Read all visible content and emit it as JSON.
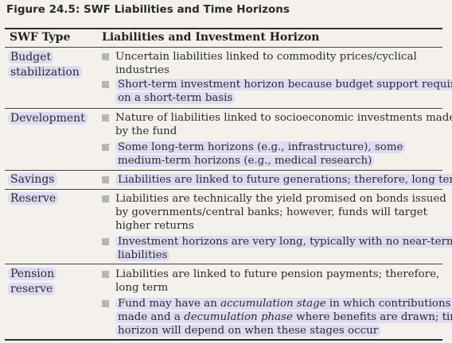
{
  "figure_title": "Figure 24.5:  SWF Liabilities and Time Horizons",
  "header": {
    "col1": "SWF Type",
    "col2": "Liabilities and Investment Horizon"
  },
  "rows": [
    {
      "type_lines": [
        "Budget",
        "stabilization"
      ],
      "bullets": [
        {
          "lines": [
            "Uncertain liabilities linked to commodity prices/cyclical",
            "industries"
          ]
        },
        {
          "lines": [
            "Short-term investment horizon because budget support required",
            "on a short-term basis"
          ]
        }
      ]
    },
    {
      "type_lines": [
        "Development"
      ],
      "bullets": [
        {
          "lines": [
            "Nature of liabilities linked to socioeconomic investments made",
            "by the fund"
          ]
        },
        {
          "lines": [
            "Some long-term horizons (e.g., infrastructure), some",
            "medium-term horizons (e.g., medical research)"
          ]
        }
      ]
    },
    {
      "type_lines": [
        "Savings"
      ],
      "bullets": [
        {
          "lines": [
            "Liabilities are linked to future generations; therefore, long term"
          ]
        }
      ]
    },
    {
      "type_lines": [
        "Reserve"
      ],
      "bullets": [
        {
          "lines": [
            "Liabilities are technically the yield promised on bonds issued",
            "by governments/central banks; however, funds will target",
            "higher returns"
          ]
        },
        {
          "lines": [
            "Investment horizons are very long, typically with no near-term",
            "liabilities"
          ]
        }
      ]
    },
    {
      "type_lines": [
        "Pension",
        "reserve"
      ],
      "bullets": [
        {
          "lines": [
            "Liabilities are linked to future pension payments; therefore,",
            "long term"
          ]
        },
        {
          "lines": [
            "Fund may have an ",
            "accumulation stage",
            " in which contributions are",
            "made and a ",
            "decumulation phase",
            " where benefits are drawn; time",
            "horizon will depend on when these stages occur"
          ]
        }
      ]
    }
  ]
}
